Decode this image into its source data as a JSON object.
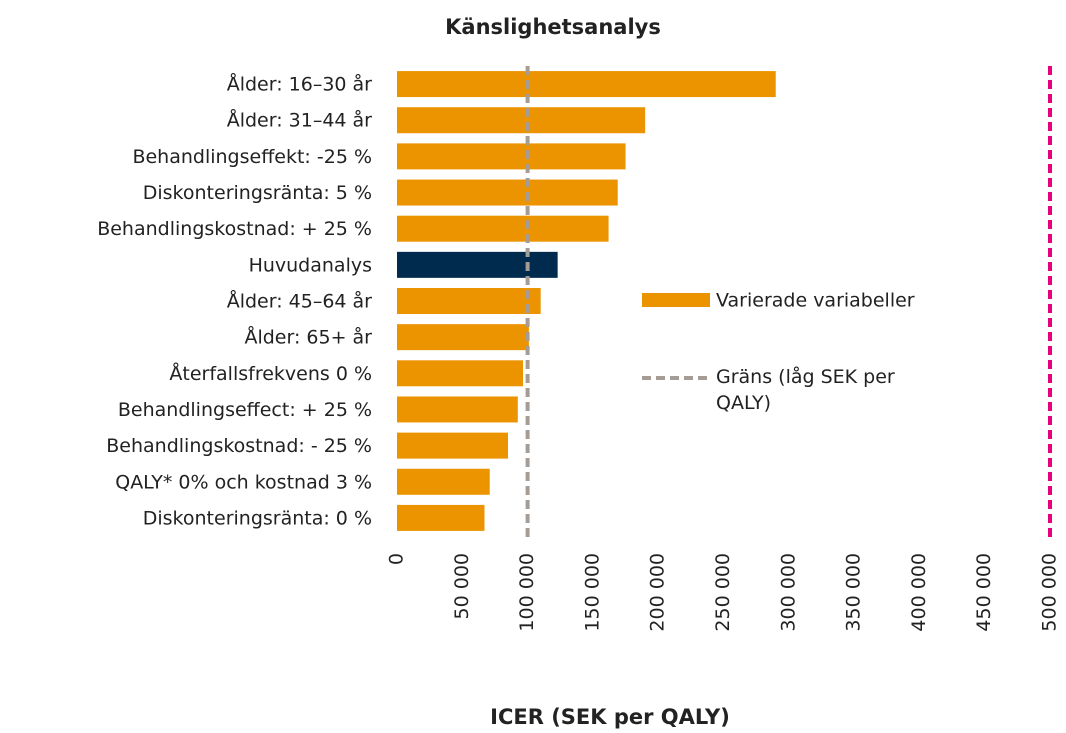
{
  "chart_data": {
    "type": "bar",
    "orientation": "horizontal",
    "title": "Känslighetsanalys",
    "x_label": "ICER (SEK per QALY)",
    "categories": [
      "Ålder: 16–30 år",
      "Ålder: 31–44 år",
      "Behandlingseffekt: -25 %",
      "Diskonteringsränta: 5 %",
      "Behandlingskostnad: + 25 %",
      "Huvudanalys",
      "Ålder: 45–64 år",
      "Ålder: 65+ år",
      "Återfallsfrekvens 0 %",
      "Behandlingseffect: + 25 %",
      "Behandlingskostnad: - 25 %",
      "QALY* 0% och kostnad 3 %",
      "Diskonteringsränta: 0 %"
    ],
    "series": [
      {
        "name": "Varierade variabeller",
        "color": "#ec9400",
        "values": [
          290000,
          190000,
          175000,
          169000,
          162000,
          123000,
          110000,
          101000,
          96500,
          92500,
          85000,
          71000,
          67000
        ],
        "colors": [
          "#ec9400",
          "#ec9400",
          "#ec9400",
          "#ec9400",
          "#ec9400",
          "#002a4e",
          "#ec9400",
          "#ec9400",
          "#ec9400",
          "#ec9400",
          "#ec9400",
          "#ec9400",
          "#ec9400"
        ]
      }
    ],
    "reference_lines": [
      {
        "name": "Gräns (låg SEK per QALY)",
        "value": 100000,
        "color": "#a59d95"
      },
      {
        "value": 500000,
        "color": "#e6007e"
      }
    ],
    "xlim": [
      0,
      500000
    ],
    "xticks": [
      0,
      {
        "value": 50000,
        "label": "50 000"
      },
      {
        "value": 100000,
        "label": "100 000"
      },
      {
        "value": 150000,
        "label": "150 000"
      },
      {
        "value": 200000,
        "label": "200 000"
      },
      {
        "value": 250000,
        "label": "250 000"
      },
      {
        "value": 300000,
        "label": "300 000"
      },
      {
        "value": 350000,
        "label": "350 000"
      },
      {
        "value": 400000,
        "label": "400 000"
      },
      {
        "value": 450000,
        "label": "450 000"
      },
      {
        "value": 500000,
        "label": "500 000"
      }
    ],
    "grid": false
  }
}
